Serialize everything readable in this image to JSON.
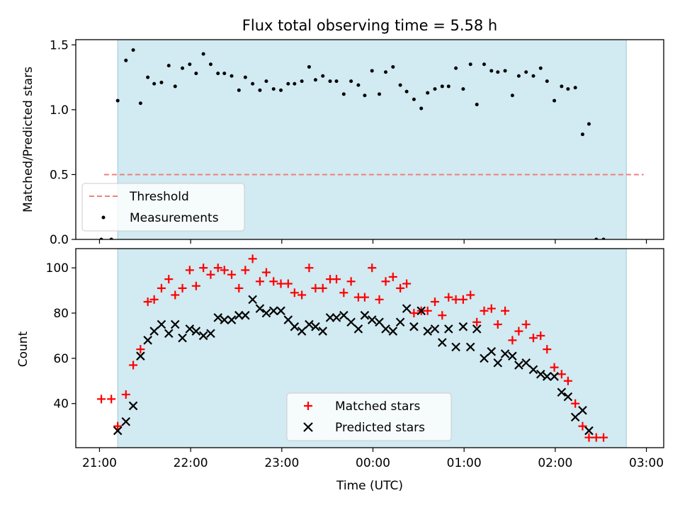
{
  "title": "Flux total observing time = 5.58 h",
  "colors": {
    "observing_band": "#add8e6",
    "matched": "#ff0000",
    "predicted": "#000000",
    "threshold": "#f08080",
    "measurements": "#000000"
  },
  "chart_data": [
    {
      "type": "scatter",
      "name": "ratio-panel",
      "ylabel": "Matched/Predicted stars",
      "xlabel": "",
      "x_unit": "hours since 21:00 UTC",
      "xlim": [
        -0.26,
        6.19
      ],
      "ylim": [
        0,
        1.54
      ],
      "yticks": [
        0.0,
        0.5,
        1.0,
        1.5
      ],
      "ytick_labels": [
        "0.0",
        "0.5",
        "1.0",
        "1.5"
      ],
      "observing_band": [
        0.2,
        5.78
      ],
      "threshold": {
        "label": "Threshold",
        "y": 0.5,
        "x_range": [
          0.05,
          5.97
        ]
      },
      "legend": {
        "position": "lower-left",
        "entries": [
          "Threshold",
          "Measurements"
        ]
      },
      "series": [
        {
          "name": "Measurements",
          "marker": "dot",
          "points": [
            [
              0.02,
              0.0
            ],
            [
              0.13,
              0.0
            ],
            [
              0.2,
              1.07
            ],
            [
              0.29,
              1.38
            ],
            [
              0.37,
              1.46
            ],
            [
              0.45,
              1.05
            ],
            [
              0.53,
              1.25
            ],
            [
              0.6,
              1.2
            ],
            [
              0.68,
              1.21
            ],
            [
              0.76,
              1.34
            ],
            [
              0.83,
              1.18
            ],
            [
              0.91,
              1.32
            ],
            [
              0.99,
              1.35
            ],
            [
              1.06,
              1.28
            ],
            [
              1.14,
              1.43
            ],
            [
              1.22,
              1.35
            ],
            [
              1.3,
              1.28
            ],
            [
              1.37,
              1.28
            ],
            [
              1.45,
              1.26
            ],
            [
              1.53,
              1.15
            ],
            [
              1.6,
              1.25
            ],
            [
              1.68,
              1.2
            ],
            [
              1.76,
              1.15
            ],
            [
              1.83,
              1.22
            ],
            [
              1.91,
              1.16
            ],
            [
              1.99,
              1.15
            ],
            [
              2.07,
              1.2
            ],
            [
              2.14,
              1.2
            ],
            [
              2.22,
              1.22
            ],
            [
              2.3,
              1.33
            ],
            [
              2.37,
              1.23
            ],
            [
              2.45,
              1.26
            ],
            [
              2.53,
              1.22
            ],
            [
              2.6,
              1.22
            ],
            [
              2.68,
              1.12
            ],
            [
              2.76,
              1.22
            ],
            [
              2.84,
              1.19
            ],
            [
              2.91,
              1.11
            ],
            [
              2.99,
              1.3
            ],
            [
              3.07,
              1.12
            ],
            [
              3.14,
              1.29
            ],
            [
              3.22,
              1.33
            ],
            [
              3.3,
              1.19
            ],
            [
              3.37,
              1.14
            ],
            [
              3.45,
              1.08
            ],
            [
              3.53,
              1.01
            ],
            [
              3.6,
              1.13
            ],
            [
              3.68,
              1.16
            ],
            [
              3.76,
              1.18
            ],
            [
              3.83,
              1.18
            ],
            [
              3.91,
              1.32
            ],
            [
              3.99,
              1.16
            ],
            [
              4.07,
              1.35
            ],
            [
              4.14,
              1.04
            ],
            [
              4.22,
              1.35
            ],
            [
              4.3,
              1.3
            ],
            [
              4.37,
              1.29
            ],
            [
              4.45,
              1.3
            ],
            [
              4.53,
              1.11
            ],
            [
              4.6,
              1.26
            ],
            [
              4.68,
              1.29
            ],
            [
              4.76,
              1.26
            ],
            [
              4.84,
              1.32
            ],
            [
              4.91,
              1.22
            ],
            [
              4.99,
              1.07
            ],
            [
              5.07,
              1.18
            ],
            [
              5.14,
              1.16
            ],
            [
              5.22,
              1.17
            ],
            [
              5.3,
              0.81
            ],
            [
              5.37,
              0.89
            ],
            [
              5.45,
              0.0
            ],
            [
              5.53,
              0.0
            ]
          ]
        }
      ]
    },
    {
      "type": "scatter",
      "name": "count-panel",
      "ylabel": "Count",
      "xlabel": "Time (UTC)",
      "x_unit": "hours since 21:00 UTC",
      "xlim": [
        -0.26,
        6.19
      ],
      "ylim": [
        20.5,
        108.5
      ],
      "yticks": [
        40,
        60,
        80,
        100
      ],
      "ytick_labels": [
        "40",
        "60",
        "80",
        "100"
      ],
      "xticks": [
        0,
        1,
        2,
        3,
        4,
        5,
        6
      ],
      "xtick_labels": [
        "21:00",
        "22:00",
        "23:00",
        "00:00",
        "01:00",
        "02:00",
        "03:00"
      ],
      "observing_band": [
        0.2,
        5.78
      ],
      "legend": {
        "position": "lower-center",
        "entries": [
          "Matched stars",
          "Predicted stars"
        ]
      },
      "series": [
        {
          "name": "Matched stars",
          "marker": "plus",
          "points": [
            [
              0.02,
              42
            ],
            [
              0.13,
              42
            ],
            [
              0.2,
              30
            ],
            [
              0.29,
              44
            ],
            [
              0.37,
              57
            ],
            [
              0.45,
              64
            ],
            [
              0.53,
              85
            ],
            [
              0.6,
              86
            ],
            [
              0.68,
              91
            ],
            [
              0.76,
              95
            ],
            [
              0.83,
              88
            ],
            [
              0.91,
              91
            ],
            [
              0.99,
              99
            ],
            [
              1.06,
              92
            ],
            [
              1.14,
              100
            ],
            [
              1.22,
              97
            ],
            [
              1.3,
              100
            ],
            [
              1.37,
              99
            ],
            [
              1.45,
              97
            ],
            [
              1.53,
              91
            ],
            [
              1.6,
              99
            ],
            [
              1.68,
              104
            ],
            [
              1.76,
              94
            ],
            [
              1.83,
              98
            ],
            [
              1.91,
              94
            ],
            [
              1.99,
              93
            ],
            [
              2.07,
              93
            ],
            [
              2.14,
              89
            ],
            [
              2.22,
              88
            ],
            [
              2.3,
              100
            ],
            [
              2.37,
              91
            ],
            [
              2.45,
              91
            ],
            [
              2.53,
              95
            ],
            [
              2.6,
              95
            ],
            [
              2.68,
              89
            ],
            [
              2.76,
              94
            ],
            [
              2.84,
              87
            ],
            [
              2.91,
              87
            ],
            [
              2.99,
              100
            ],
            [
              3.07,
              86
            ],
            [
              3.14,
              94
            ],
            [
              3.22,
              96
            ],
            [
              3.3,
              91
            ],
            [
              3.37,
              93
            ],
            [
              3.45,
              80
            ],
            [
              3.53,
              81
            ],
            [
              3.6,
              81
            ],
            [
              3.68,
              85
            ],
            [
              3.76,
              79
            ],
            [
              3.83,
              87
            ],
            [
              3.91,
              86
            ],
            [
              3.99,
              86
            ],
            [
              4.07,
              88
            ],
            [
              4.14,
              76
            ],
            [
              4.22,
              81
            ],
            [
              4.3,
              82
            ],
            [
              4.37,
              75
            ],
            [
              4.45,
              81
            ],
            [
              4.53,
              68
            ],
            [
              4.6,
              72
            ],
            [
              4.68,
              75
            ],
            [
              4.76,
              69
            ],
            [
              4.84,
              70
            ],
            [
              4.91,
              64
            ],
            [
              4.99,
              56
            ],
            [
              5.07,
              53
            ],
            [
              5.14,
              50
            ],
            [
              5.22,
              40
            ],
            [
              5.3,
              30
            ],
            [
              5.37,
              25
            ],
            [
              5.45,
              25
            ],
            [
              5.53,
              25
            ]
          ]
        },
        {
          "name": "Predicted stars",
          "marker": "x",
          "points": [
            [
              0.2,
              28
            ],
            [
              0.29,
              32
            ],
            [
              0.37,
              39
            ],
            [
              0.45,
              61
            ],
            [
              0.53,
              68
            ],
            [
              0.6,
              72
            ],
            [
              0.68,
              75
            ],
            [
              0.76,
              71
            ],
            [
              0.83,
              75
            ],
            [
              0.91,
              69
            ],
            [
              0.99,
              73
            ],
            [
              1.06,
              72
            ],
            [
              1.14,
              70
            ],
            [
              1.22,
              71
            ],
            [
              1.3,
              78
            ],
            [
              1.37,
              77
            ],
            [
              1.45,
              77
            ],
            [
              1.53,
              79
            ],
            [
              1.6,
              79
            ],
            [
              1.68,
              86
            ],
            [
              1.76,
              82
            ],
            [
              1.83,
              80
            ],
            [
              1.91,
              81
            ],
            [
              1.99,
              81
            ],
            [
              2.07,
              77
            ],
            [
              2.14,
              74
            ],
            [
              2.22,
              72
            ],
            [
              2.3,
              75
            ],
            [
              2.37,
              74
            ],
            [
              2.45,
              72
            ],
            [
              2.53,
              78
            ],
            [
              2.6,
              78
            ],
            [
              2.68,
              79
            ],
            [
              2.76,
              76
            ],
            [
              2.84,
              73
            ],
            [
              2.91,
              79
            ],
            [
              2.99,
              77
            ],
            [
              3.07,
              76
            ],
            [
              3.14,
              73
            ],
            [
              3.22,
              72
            ],
            [
              3.3,
              76
            ],
            [
              3.37,
              82
            ],
            [
              3.45,
              74
            ],
            [
              3.53,
              81
            ],
            [
              3.6,
              72
            ],
            [
              3.68,
              73
            ],
            [
              3.76,
              67
            ],
            [
              3.83,
              73
            ],
            [
              3.91,
              65
            ],
            [
              3.99,
              74
            ],
            [
              4.07,
              65
            ],
            [
              4.14,
              73
            ],
            [
              4.22,
              60
            ],
            [
              4.3,
              63
            ],
            [
              4.37,
              58
            ],
            [
              4.45,
              62
            ],
            [
              4.53,
              61
            ],
            [
              4.6,
              57
            ],
            [
              4.68,
              58
            ],
            [
              4.76,
              55
            ],
            [
              4.84,
              53
            ],
            [
              4.91,
              52
            ],
            [
              4.99,
              52
            ],
            [
              5.07,
              45
            ],
            [
              5.14,
              43
            ],
            [
              5.22,
              34
            ],
            [
              5.3,
              37
            ],
            [
              5.37,
              28
            ]
          ]
        }
      ]
    }
  ]
}
